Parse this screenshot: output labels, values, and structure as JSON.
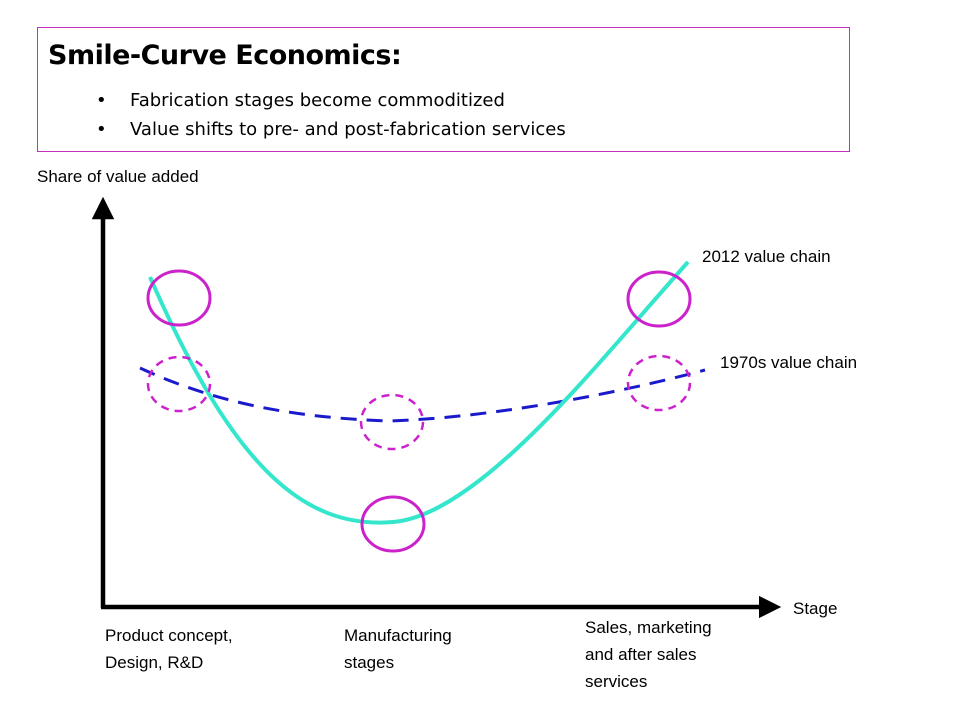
{
  "header": {
    "title": "Smile-Curve Economics:",
    "bullets": [
      "Fabrication stages become commoditized",
      "Value shifts to pre- and post-fabrication services"
    ]
  },
  "axes": {
    "y_label": "Share of value added",
    "x_label": "Stage"
  },
  "stages": [
    [
      "Product concept,",
      "Design, R&D"
    ],
    [
      "Manufacturing",
      "stages"
    ],
    [
      "Sales, marketing",
      "and after sales",
      "services"
    ]
  ],
  "curves": {
    "modern_label": "2012 value chain",
    "historic_label": "1970s value chain"
  },
  "colors": {
    "modern_curve": "#33e6cc",
    "historic_curve": "#1a1acc",
    "circles": "#cc22cc",
    "title_border": "#c030c0",
    "axes": "#000000"
  }
}
